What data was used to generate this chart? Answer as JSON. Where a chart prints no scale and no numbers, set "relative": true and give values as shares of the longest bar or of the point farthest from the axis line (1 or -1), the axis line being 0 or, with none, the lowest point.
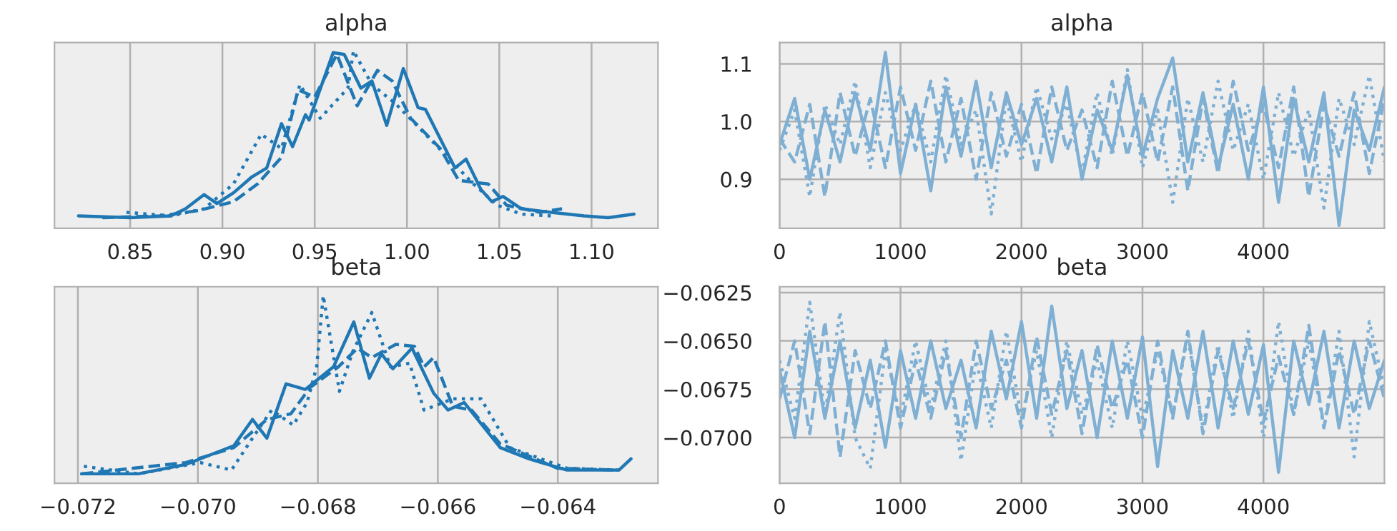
{
  "chart_data": [
    {
      "type": "line",
      "title": "alpha",
      "relative": true,
      "grid": "x",
      "tick_labels": "x",
      "xlim": [
        0.809,
        1.136
      ],
      "xticks": [
        0.85,
        {
          "value": 0.9,
          "label": "0.90"
        },
        0.95,
        {
          "value": 1.0,
          "label": "1.00"
        },
        1.05,
        {
          "value": 1.1,
          "label": "1.10"
        }
      ],
      "series": [
        {
          "color": "#1f77b4",
          "line_style": "solid",
          "x": [
            0.822,
            0.85,
            0.872,
            0.88,
            0.89,
            0.897,
            0.906,
            0.916,
            0.924,
            0.932,
            0.938,
            0.945,
            0.947,
            0.96,
            0.966,
            0.975,
            0.981,
            0.989,
            0.998,
            1.006,
            1.01,
            1.026,
            1.032,
            1.04,
            1.046,
            1.052,
            1.062,
            1.078,
            1.096,
            1.109,
            1.123
          ],
          "values": [
            0.07,
            0.06,
            0.07,
            0.11,
            0.19,
            0.14,
            0.2,
            0.29,
            0.34,
            0.59,
            0.46,
            0.64,
            0.61,
            0.99,
            0.98,
            0.79,
            0.83,
            0.58,
            0.9,
            0.68,
            0.67,
            0.34,
            0.39,
            0.22,
            0.15,
            0.18,
            0.11,
            0.09,
            0.07,
            0.06,
            0.08
          ]
        },
        {
          "color": "#1f77b4",
          "line_style": "dashed",
          "x": [
            0.835,
            0.866,
            0.887,
            0.906,
            0.919,
            0.932,
            0.941,
            0.95,
            0.962,
            0.973,
            0.984,
            0.992,
            1.002,
            1.018,
            1.028,
            1.044,
            1.054,
            1.072,
            1.084
          ],
          "values": [
            0.06,
            0.07,
            0.1,
            0.15,
            0.25,
            0.4,
            0.78,
            0.74,
            0.98,
            0.69,
            0.89,
            0.83,
            0.62,
            0.45,
            0.27,
            0.25,
            0.13,
            0.09,
            0.11
          ]
        },
        {
          "color": "#1f77b4",
          "line_style": "dotted",
          "x": [
            0.848,
            0.872,
            0.89,
            0.906,
            0.921,
            0.932,
            0.942,
            0.953,
            0.968,
            0.971,
            0.981,
            0.994,
            1.01,
            1.023,
            1.036,
            1.049,
            1.062,
            1.078
          ],
          "values": [
            0.09,
            0.07,
            0.11,
            0.25,
            0.53,
            0.45,
            0.81,
            0.62,
            0.79,
            1.0,
            0.81,
            0.7,
            0.53,
            0.39,
            0.25,
            0.13,
            0.08,
            0.07
          ]
        }
      ]
    },
    {
      "type": "line",
      "title": "alpha",
      "grid": true,
      "xlim": [
        0,
        5000
      ],
      "xticks": [
        0,
        1000,
        2000,
        3000,
        4000
      ],
      "ylim": [
        0.815,
        1.137
      ],
      "yticks": [
        {
          "value": 0.9,
          "label": "0.9"
        },
        {
          "value": 1.0,
          "label": "1.0"
        },
        {
          "value": 1.1,
          "label": "1.1"
        }
      ],
      "x": [
        0,
        125,
        250,
        375,
        500,
        625,
        750,
        875,
        1000,
        1125,
        1250,
        1375,
        1500,
        1625,
        1750,
        1875,
        2000,
        2125,
        2250,
        2375,
        2500,
        2625,
        2750,
        2875,
        3000,
        3125,
        3250,
        3375,
        3500,
        3625,
        3750,
        3875,
        4000,
        4125,
        4250,
        4375,
        4500,
        4625,
        4750,
        4875,
        5000
      ],
      "series": [
        {
          "color": "#7fb0d4",
          "line_style": "solid",
          "values": [
            0.96,
            1.04,
            0.9,
            1.02,
            0.93,
            1.05,
            0.95,
            1.12,
            0.91,
            1.03,
            0.88,
            1.06,
            0.94,
            1.07,
            0.92,
            1.05,
            0.96,
            1.04,
            0.93,
            1.06,
            0.9,
            1.02,
            0.95,
            1.08,
            0.94,
            1.04,
            1.11,
            0.93,
            1.05,
            0.92,
            1.03,
            0.9,
            1.06,
            0.86,
            1.04,
            0.93,
            1.05,
            0.82,
            1.02,
            0.95,
            1.06
          ]
        },
        {
          "color": "#7fb0d4",
          "line_style": "dashed",
          "values": [
            0.97,
            0.93,
            1.03,
            0.87,
            1.05,
            0.94,
            1.04,
            0.92,
            1.06,
            0.95,
            1.07,
            0.93,
            1.04,
            0.9,
            1.05,
            0.94,
            1.03,
            0.91,
            1.06,
            0.95,
            1.02,
            0.92,
            1.07,
            0.94,
            1.05,
            0.93,
            1.06,
            0.88,
            1.04,
            0.91,
            1.07,
            0.95,
            1.03,
            0.92,
            1.06,
            0.87,
            1.03,
            0.94,
            1.05,
            0.91,
            1.04
          ]
        },
        {
          "color": "#7fb0d4",
          "line_style": "dotted",
          "values": [
            0.95,
            1.02,
            0.87,
            1.03,
            0.96,
            1.07,
            0.92,
            1.05,
            0.95,
            1.03,
            0.93,
            1.08,
            0.96,
            1.02,
            0.84,
            1.04,
            0.93,
            1.06,
            0.97,
            1.03,
            0.91,
            1.05,
            0.94,
            1.09,
            0.92,
            1.02,
            0.86,
            1.04,
            0.93,
            1.07,
            0.95,
            1.03,
            0.9,
            1.05,
            0.94,
            1.02,
            0.85,
            1.04,
            0.96,
            1.08,
            0.93
          ]
        }
      ]
    },
    {
      "type": "line",
      "title": "beta",
      "relative": true,
      "grid": "x",
      "tick_labels": "x",
      "xlim": [
        -0.07239,
        -0.06233
      ],
      "xticks": [
        {
          "value": -0.072,
          "label": "−0.072"
        },
        {
          "value": -0.07,
          "label": "−0.070"
        },
        {
          "value": -0.068,
          "label": "−0.068"
        },
        {
          "value": -0.066,
          "label": "−0.066"
        },
        {
          "value": -0.064,
          "label": "−0.064"
        }
      ],
      "series": [
        {
          "color": "#1f77b4",
          "line_style": "solid",
          "x": [
            -0.07194,
            -0.07099,
            -0.0702,
            -0.06988,
            -0.0694,
            -0.06909,
            -0.06885,
            -0.06853,
            -0.06821,
            -0.06774,
            -0.0674,
            -0.06714,
            -0.06694,
            -0.06675,
            -0.06643,
            -0.06607,
            -0.06583,
            -0.06556,
            -0.06496,
            -0.06448,
            -0.06385,
            -0.06298,
            -0.06278
          ],
          "values": [
            0.05,
            0.05,
            0.1,
            0.14,
            0.2,
            0.34,
            0.24,
            0.53,
            0.5,
            0.62,
            0.86,
            0.56,
            0.69,
            0.61,
            0.72,
            0.48,
            0.39,
            0.43,
            0.19,
            0.13,
            0.07,
            0.07,
            0.13
          ]
        },
        {
          "color": "#1f77b4",
          "line_style": "dashed",
          "x": [
            -0.07194,
            -0.0702,
            -0.0694,
            -0.06885,
            -0.06845,
            -0.06813,
            -0.06766,
            -0.06734,
            -0.0671,
            -0.0667,
            -0.06639,
            -0.06623,
            -0.06607,
            -0.06575,
            -0.06544,
            -0.06496,
            -0.06401,
            -0.06306
          ],
          "values": [
            0.05,
            0.11,
            0.19,
            0.34,
            0.37,
            0.51,
            0.62,
            0.72,
            0.67,
            0.74,
            0.73,
            0.62,
            0.67,
            0.41,
            0.39,
            0.21,
            0.08,
            0.07
          ]
        },
        {
          "color": "#1f77b4",
          "line_style": "dotted",
          "x": [
            -0.0719,
            -0.07099,
            -0.06996,
            -0.06944,
            -0.06909,
            -0.06877,
            -0.06841,
            -0.06818,
            -0.06802,
            -0.06791,
            -0.06764,
            -0.06742,
            -0.0671,
            -0.06679,
            -0.06647,
            -0.06623,
            -0.06575,
            -0.06528,
            -0.0648,
            -0.06385,
            -0.06298
          ],
          "values": [
            0.09,
            0.05,
            0.11,
            0.07,
            0.24,
            0.39,
            0.31,
            0.43,
            0.62,
            1.0,
            0.49,
            0.7,
            0.91,
            0.62,
            0.64,
            0.39,
            0.45,
            0.45,
            0.19,
            0.08,
            0.07
          ]
        }
      ]
    },
    {
      "type": "line",
      "title": "beta",
      "grid": true,
      "xlim": [
        0,
        5000
      ],
      "xticks": [
        0,
        1000,
        2000,
        3000,
        4000
      ],
      "ylim": [
        -0.07236,
        -0.0622
      ],
      "yticks": [
        {
          "value": -0.0625,
          "label": "−0.0625"
        },
        {
          "value": -0.065,
          "label": "−0.0650"
        },
        {
          "value": -0.0675,
          "label": "−0.0675"
        },
        {
          "value": -0.07,
          "label": "−0.0700"
        }
      ],
      "x": [
        0,
        125,
        250,
        375,
        500,
        625,
        750,
        875,
        1000,
        1125,
        1250,
        1375,
        1500,
        1625,
        1750,
        1875,
        2000,
        2125,
        2250,
        2375,
        2500,
        2625,
        2750,
        2875,
        3000,
        3125,
        3250,
        3375,
        3500,
        3625,
        3750,
        3875,
        4000,
        4125,
        4250,
        4375,
        4500,
        4625,
        4750,
        4875,
        5000
      ],
      "series": [
        {
          "color": "#7fb0d4",
          "line_style": "solid",
          "values": [
            -0.0665,
            -0.07,
            -0.0645,
            -0.069,
            -0.065,
            -0.0695,
            -0.066,
            -0.0705,
            -0.0655,
            -0.069,
            -0.065,
            -0.0685,
            -0.066,
            -0.0695,
            -0.0645,
            -0.068,
            -0.064,
            -0.069,
            -0.0632,
            -0.0685,
            -0.0655,
            -0.07,
            -0.065,
            -0.069,
            -0.0648,
            -0.0715,
            -0.0655,
            -0.069,
            -0.0645,
            -0.0695,
            -0.065,
            -0.0688,
            -0.0652,
            -0.0718,
            -0.065,
            -0.0683,
            -0.0645,
            -0.0695,
            -0.065,
            -0.0685,
            -0.066
          ]
        },
        {
          "color": "#7fb0d4",
          "line_style": "dashed",
          "values": [
            -0.068,
            -0.065,
            -0.0698,
            -0.064,
            -0.071,
            -0.0655,
            -0.0685,
            -0.065,
            -0.0695,
            -0.066,
            -0.069,
            -0.0655,
            -0.07,
            -0.065,
            -0.0685,
            -0.066,
            -0.0695,
            -0.0648,
            -0.0688,
            -0.0655,
            -0.0698,
            -0.0652,
            -0.0685,
            -0.066,
            -0.07,
            -0.065,
            -0.069,
            -0.0645,
            -0.0698,
            -0.0655,
            -0.0685,
            -0.065,
            -0.0692,
            -0.0658,
            -0.0688,
            -0.0642,
            -0.0695,
            -0.0655,
            -0.0688,
            -0.065,
            -0.068
          ]
        },
        {
          "color": "#7fb0d4",
          "line_style": "dotted",
          "values": [
            -0.066,
            -0.069,
            -0.063,
            -0.0688,
            -0.0635,
            -0.07,
            -0.0716,
            -0.0655,
            -0.069,
            -0.065,
            -0.0685,
            -0.065,
            -0.0712,
            -0.066,
            -0.0695,
            -0.0645,
            -0.069,
            -0.0655,
            -0.07,
            -0.065,
            -0.0688,
            -0.066,
            -0.0695,
            -0.065,
            -0.069,
            -0.0655,
            -0.0688,
            -0.0648,
            -0.0695,
            -0.0652,
            -0.069,
            -0.0645,
            -0.07,
            -0.064,
            -0.0688,
            -0.065,
            -0.0695,
            -0.0645,
            -0.071,
            -0.064,
            -0.0675
          ]
        }
      ]
    }
  ]
}
